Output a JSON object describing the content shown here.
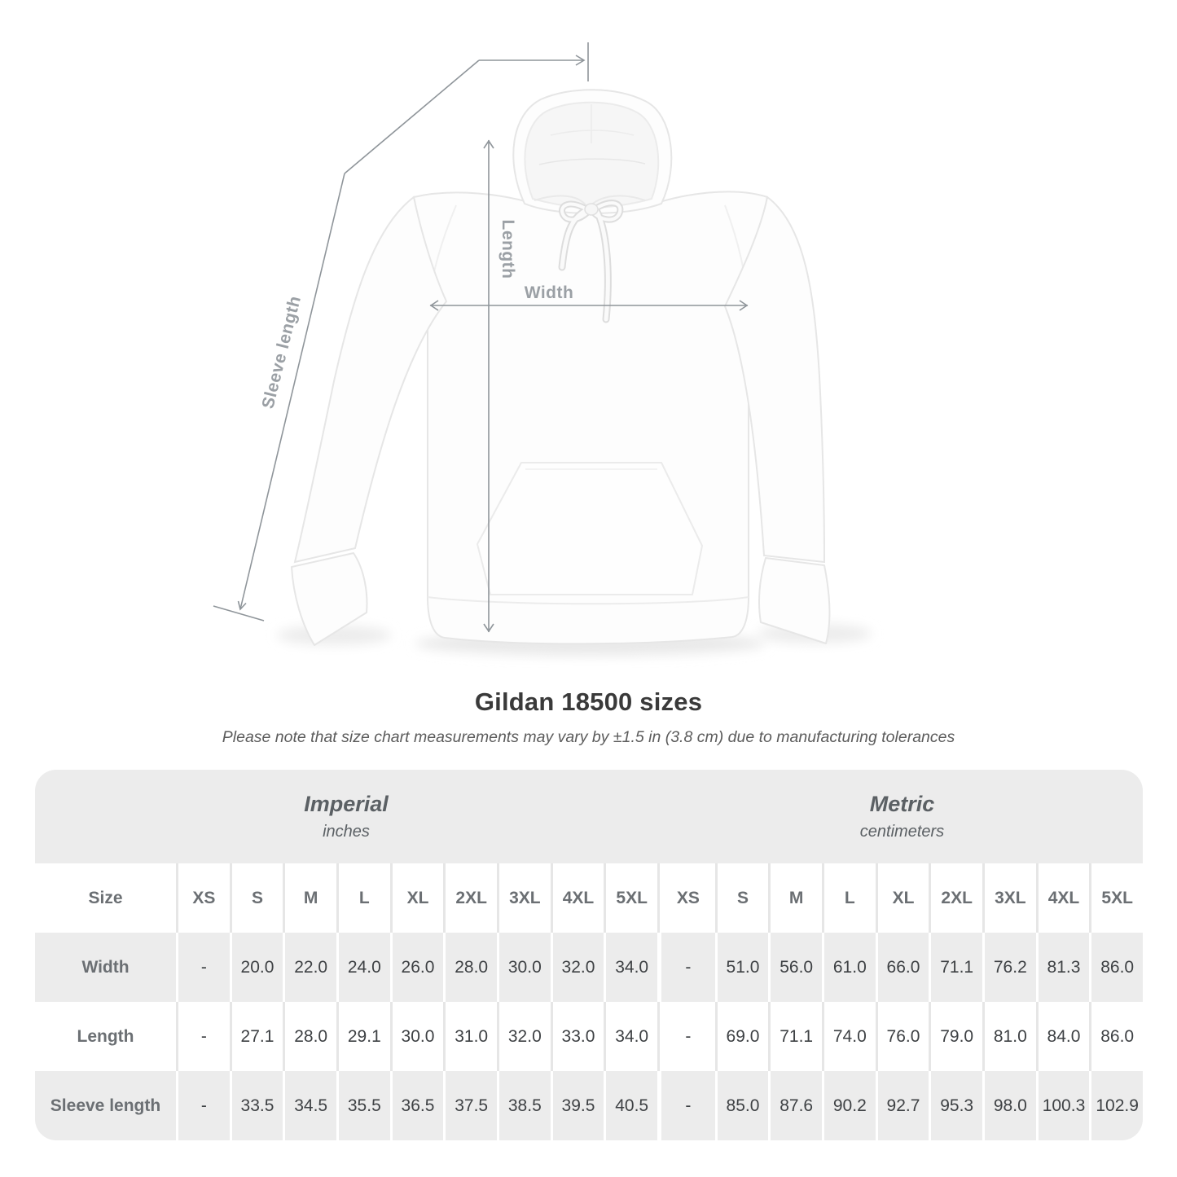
{
  "title": "Gildan 18500 sizes",
  "note": "Please note that size chart measurements may vary by ±1.5 in (3.8 cm) due to manufacturing tolerances",
  "diagram": {
    "length_label": "Length",
    "width_label": "Width",
    "sleeve_label": "Sleeve length"
  },
  "table": {
    "size_header": "Size",
    "sizes": [
      "XS",
      "S",
      "M",
      "L",
      "XL",
      "2XL",
      "3XL",
      "4XL",
      "5XL"
    ],
    "sections": [
      {
        "name": "Imperial",
        "unit": "inches"
      },
      {
        "name": "Metric",
        "unit": "centimeters"
      }
    ],
    "rows": [
      {
        "label": "Width",
        "imperial": [
          "-",
          "20.0",
          "22.0",
          "24.0",
          "26.0",
          "28.0",
          "30.0",
          "32.0",
          "34.0"
        ],
        "metric": [
          "-",
          "51.0",
          "56.0",
          "61.0",
          "66.0",
          "71.1",
          "76.2",
          "81.3",
          "86.0"
        ]
      },
      {
        "label": "Length",
        "imperial": [
          "-",
          "27.1",
          "28.0",
          "29.1",
          "30.0",
          "31.0",
          "32.0",
          "33.0",
          "34.0"
        ],
        "metric": [
          "-",
          "69.0",
          "71.1",
          "74.0",
          "76.0",
          "79.0",
          "81.0",
          "84.0",
          "86.0"
        ]
      },
      {
        "label": "Sleeve length",
        "imperial": [
          "-",
          "33.5",
          "34.5",
          "35.5",
          "36.5",
          "37.5",
          "38.5",
          "39.5",
          "40.5"
        ],
        "metric": [
          "-",
          "85.0",
          "87.6",
          "90.2",
          "92.7",
          "95.3",
          "98.0",
          "100.3",
          "102.9"
        ]
      }
    ]
  },
  "colors": {
    "arrow_gray": "#8f959a",
    "label_gray": "#9ba0a5",
    "table_band_gray": "#ececec",
    "row_gray": "#ececec",
    "separator_gray": "#e6e6e6",
    "title_text": "#3a3a3a",
    "note_text": "#5c5c5c",
    "header_text": "#5b6064",
    "value_text": "#3e4144"
  }
}
